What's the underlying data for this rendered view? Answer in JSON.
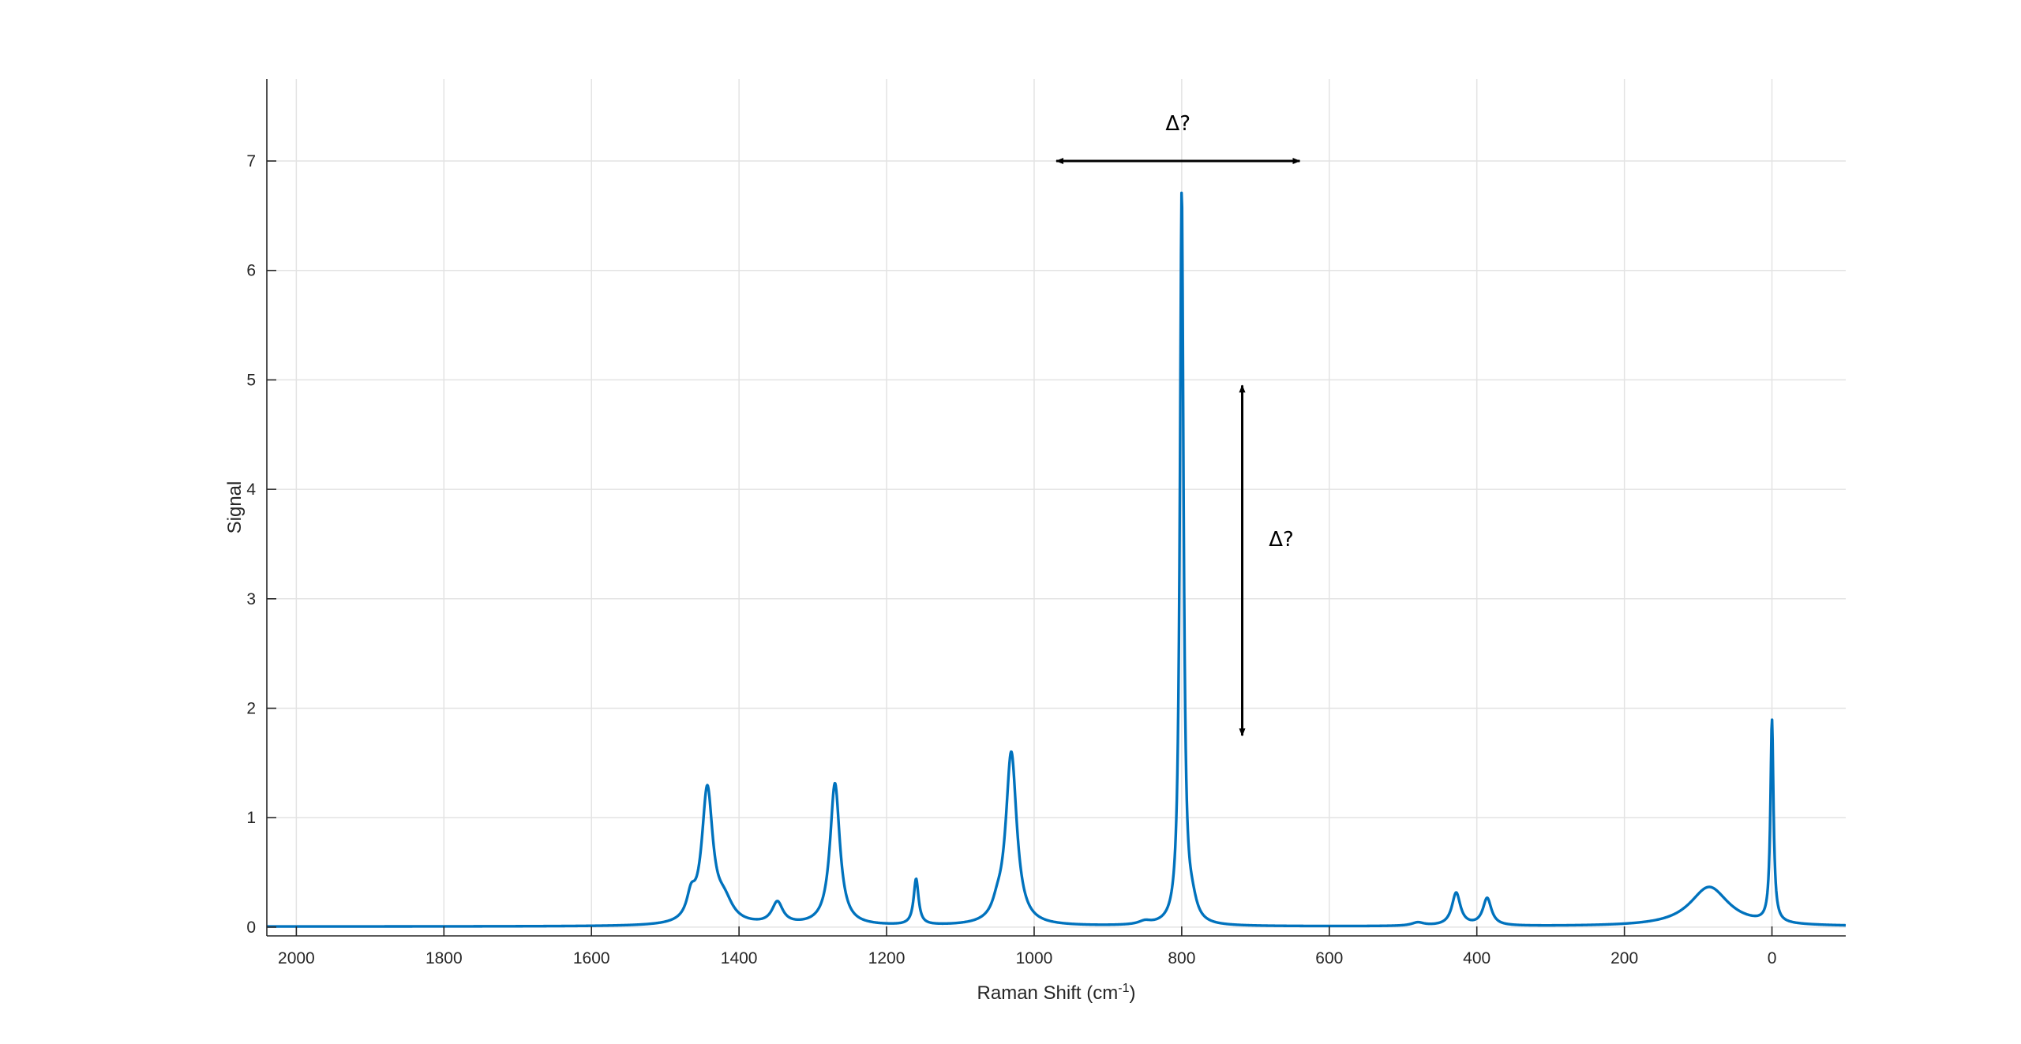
{
  "chart_data": {
    "type": "line",
    "xlabel": {
      "base": "Raman Shift (cm",
      "sup": "-1",
      "tail": ")"
    },
    "ylabel": "Signal",
    "xlim": [
      2040,
      -100
    ],
    "ylim": [
      -0.08,
      7.75
    ],
    "x_ticks": [
      2000,
      1800,
      1600,
      1400,
      1200,
      1000,
      800,
      600,
      400,
      200,
      0
    ],
    "y_ticks": [
      0,
      1,
      2,
      3,
      4,
      5,
      6,
      7
    ],
    "grid": true,
    "line_color": "#0072BD",
    "series": [
      {
        "peaks": [
          {
            "x": 1443,
            "height": 1.22,
            "width": 9
          },
          {
            "x": 1465,
            "height": 0.2,
            "width": 7
          },
          {
            "x": 1420,
            "height": 0.18,
            "width": 14
          },
          {
            "x": 1348,
            "height": 0.2,
            "width": 9
          },
          {
            "x": 1270,
            "height": 1.3,
            "width": 8
          },
          {
            "x": 1160,
            "height": 0.42,
            "width": 4
          },
          {
            "x": 1031,
            "height": 1.58,
            "width": 9
          },
          {
            "x": 1050,
            "height": 0.1,
            "width": 8
          },
          {
            "x": 800,
            "height": 6.7,
            "width": 3
          },
          {
            "x": 786,
            "height": 0.15,
            "width": 8
          },
          {
            "x": 850,
            "height": 0.03,
            "width": 10
          },
          {
            "x": 480,
            "height": 0.03,
            "width": 10
          },
          {
            "x": 428,
            "height": 0.3,
            "width": 7
          },
          {
            "x": 386,
            "height": 0.25,
            "width": 7
          },
          {
            "x": 85,
            "height": 0.36,
            "width": 32
          },
          {
            "x": 0,
            "height": 1.85,
            "width": 2.5
          }
        ]
      }
    ],
    "annotations": [
      {
        "type": "double-arrow",
        "orientation": "horizontal",
        "x1": 970,
        "x2": 640,
        "y": 7.0
      },
      {
        "type": "label",
        "text": "Δ?",
        "x": 805,
        "y": 7.28
      },
      {
        "type": "double-arrow",
        "orientation": "vertical",
        "x": 718,
        "y1": 4.95,
        "y2": 1.75
      },
      {
        "type": "label",
        "text": "Δ?",
        "x": 665,
        "y": 3.48
      }
    ]
  }
}
